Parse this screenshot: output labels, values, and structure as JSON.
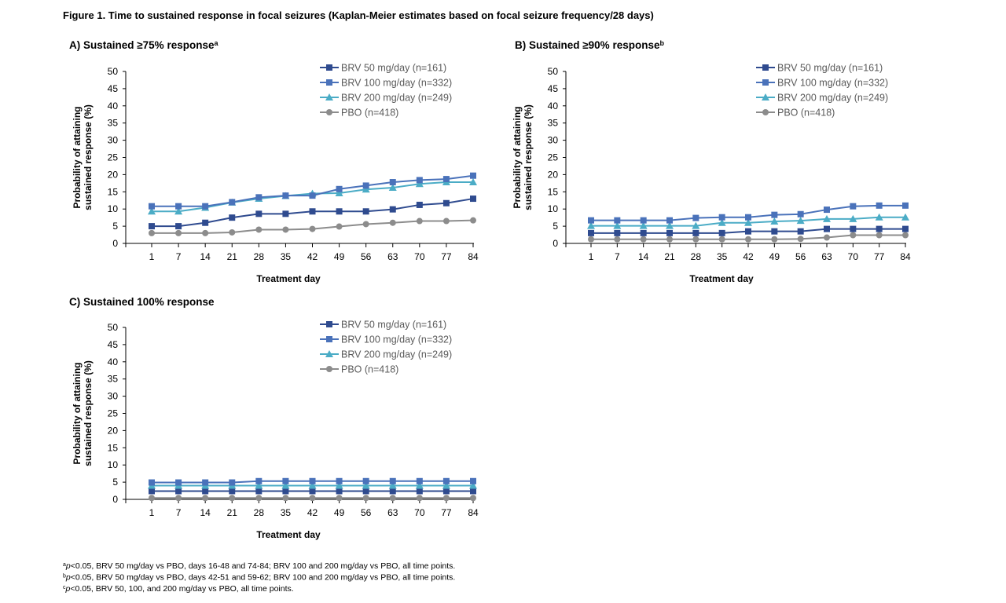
{
  "figure_title": "Figure 1.  Time to sustained response in focal seizures (Kaplan-Meier estimates based on focal seizure frequency/28 days)",
  "colors": {
    "BRV50": "#2F4B8F",
    "BRV100": "#4A72BA",
    "BRV200": "#4BACC6",
    "PBO": "#8C8C8C"
  },
  "chart_data": [
    {
      "type": "line",
      "title": "A) Sustained ≥75% response",
      "title_sup": "a",
      "xlabel": "Treatment day",
      "ylabel": [
        "Probability of attaining",
        "sustained response (%)"
      ],
      "categories": [
        "1",
        "7",
        "14",
        "21",
        "28",
        "35",
        "42",
        "49",
        "56",
        "63",
        "70",
        "77",
        "84"
      ],
      "ylim": [
        0,
        50
      ],
      "yticks": [
        0,
        5,
        10,
        15,
        20,
        25,
        30,
        35,
        40,
        45,
        50
      ],
      "legend_position": "top-right",
      "series": [
        {
          "name": "BRV 50 mg/day (n=161)",
          "key": "BRV50",
          "marker": "square",
          "values": [
            5,
            5,
            6,
            7.5,
            8.6,
            8.6,
            9.3,
            9.3,
            9.3,
            9.9,
            11.2,
            11.7,
            13
          ]
        },
        {
          "name": "BRV 100 mg/day (n=332)",
          "key": "BRV100",
          "marker": "square",
          "values": [
            10.8,
            10.8,
            10.8,
            12,
            13.4,
            13.9,
            13.9,
            15.8,
            16.8,
            17.8,
            18.4,
            18.7,
            19.7
          ]
        },
        {
          "name": "BRV 200 mg/day (n=249)",
          "key": "BRV200",
          "marker": "triangle",
          "values": [
            9.3,
            9.3,
            10.4,
            11.9,
            13,
            13.8,
            14.5,
            14.6,
            15.7,
            16.2,
            17.3,
            17.8,
            17.8
          ]
        },
        {
          "name": "PBO (n=418)",
          "key": "PBO",
          "marker": "circle",
          "values": [
            3,
            3,
            3,
            3.2,
            4,
            4,
            4.2,
            4.9,
            5.6,
            6,
            6.5,
            6.5,
            6.7
          ]
        }
      ]
    },
    {
      "type": "line",
      "title": "B) Sustained ≥90% response",
      "title_sup": "b",
      "xlabel": "Treatment day",
      "ylabel": [
        "Probability of attaining",
        "sustained response (%)"
      ],
      "categories": [
        "1",
        "7",
        "14",
        "21",
        "28",
        "35",
        "42",
        "49",
        "56",
        "63",
        "70",
        "77",
        "84"
      ],
      "ylim": [
        0,
        50
      ],
      "yticks": [
        0,
        5,
        10,
        15,
        20,
        25,
        30,
        35,
        40,
        45,
        50
      ],
      "legend_position": "top-right",
      "series": [
        {
          "name": "BRV 50 mg/day (n=161)",
          "key": "BRV50",
          "marker": "square",
          "values": [
            3,
            3,
            3,
            3,
            3,
            3,
            3.5,
            3.5,
            3.5,
            4.2,
            4.2,
            4.2,
            4.2
          ]
        },
        {
          "name": "BRV 100 mg/day (n=332)",
          "key": "BRV100",
          "marker": "square",
          "values": [
            6.7,
            6.7,
            6.7,
            6.7,
            7.4,
            7.6,
            7.6,
            8.3,
            8.5,
            9.8,
            10.8,
            11,
            11
          ]
        },
        {
          "name": "BRV 200 mg/day (n=249)",
          "key": "BRV200",
          "marker": "triangle",
          "values": [
            5.1,
            5.1,
            5.1,
            5.1,
            5.1,
            6,
            6,
            6.4,
            6.6,
            7.1,
            7.1,
            7.6,
            7.6
          ]
        },
        {
          "name": "PBO (n=418)",
          "key": "PBO",
          "marker": "circle",
          "values": [
            1.2,
            1.2,
            1.2,
            1.2,
            1.2,
            1.2,
            1.2,
            1.2,
            1.3,
            1.7,
            2.4,
            2.4,
            2.4
          ]
        }
      ]
    },
    {
      "type": "line",
      "title": "C) Sustained 100% response",
      "title_sup": "",
      "xlabel": "Treatment day",
      "ylabel": [
        "Probability of attaining",
        "sustained response (%)"
      ],
      "categories": [
        "1",
        "7",
        "14",
        "21",
        "28",
        "35",
        "42",
        "49",
        "56",
        "63",
        "70",
        "77",
        "84"
      ],
      "ylim": [
        0,
        50
      ],
      "yticks": [
        0,
        5,
        10,
        15,
        20,
        25,
        30,
        35,
        40,
        45,
        50
      ],
      "legend_position": "top-right",
      "series": [
        {
          "name": "BRV 50 mg/day (n=161)",
          "key": "BRV50",
          "marker": "square",
          "values": [
            2.4,
            2.4,
            2.4,
            2.4,
            2.4,
            2.4,
            2.4,
            2.4,
            2.4,
            2.4,
            2.4,
            2.4,
            2.4
          ]
        },
        {
          "name": "BRV 100 mg/day (n=332)",
          "key": "BRV100",
          "marker": "square",
          "values": [
            4.9,
            4.9,
            4.9,
            4.9,
            5.3,
            5.3,
            5.3,
            5.3,
            5.3,
            5.3,
            5.3,
            5.3,
            5.3
          ]
        },
        {
          "name": "BRV 200 mg/day (n=249)",
          "key": "BRV200",
          "marker": "triangle",
          "values": [
            4,
            4,
            4,
            4,
            4,
            4,
            4,
            4,
            4,
            4,
            4,
            4,
            4
          ]
        },
        {
          "name": "PBO (n=418)",
          "key": "PBO",
          "marker": "circle",
          "values": [
            0.4,
            0.4,
            0.4,
            0.4,
            0.4,
            0.4,
            0.4,
            0.4,
            0.4,
            0.4,
            0.4,
            0.4,
            0.4
          ]
        }
      ]
    }
  ],
  "footnotes": [
    {
      "sup": "a",
      "p": "p",
      "text": "<0.05, BRV 50 mg/day vs  PBO,  days 16-48 and 74-84; BRV 100 and 200 mg/day vs PBO,  all time points."
    },
    {
      "sup": "b",
      "p": "p",
      "text": "<0.05, BRV 50 mg/day vs  PBO,  days 42-51 and 59-62; BRV 100 and 200 mg/day vs PBO,  all time points."
    },
    {
      "sup": "c",
      "p": "p",
      "text": "<0.05, BRV 50, 100, and 200 mg/day vs PBO,  all time points."
    }
  ]
}
